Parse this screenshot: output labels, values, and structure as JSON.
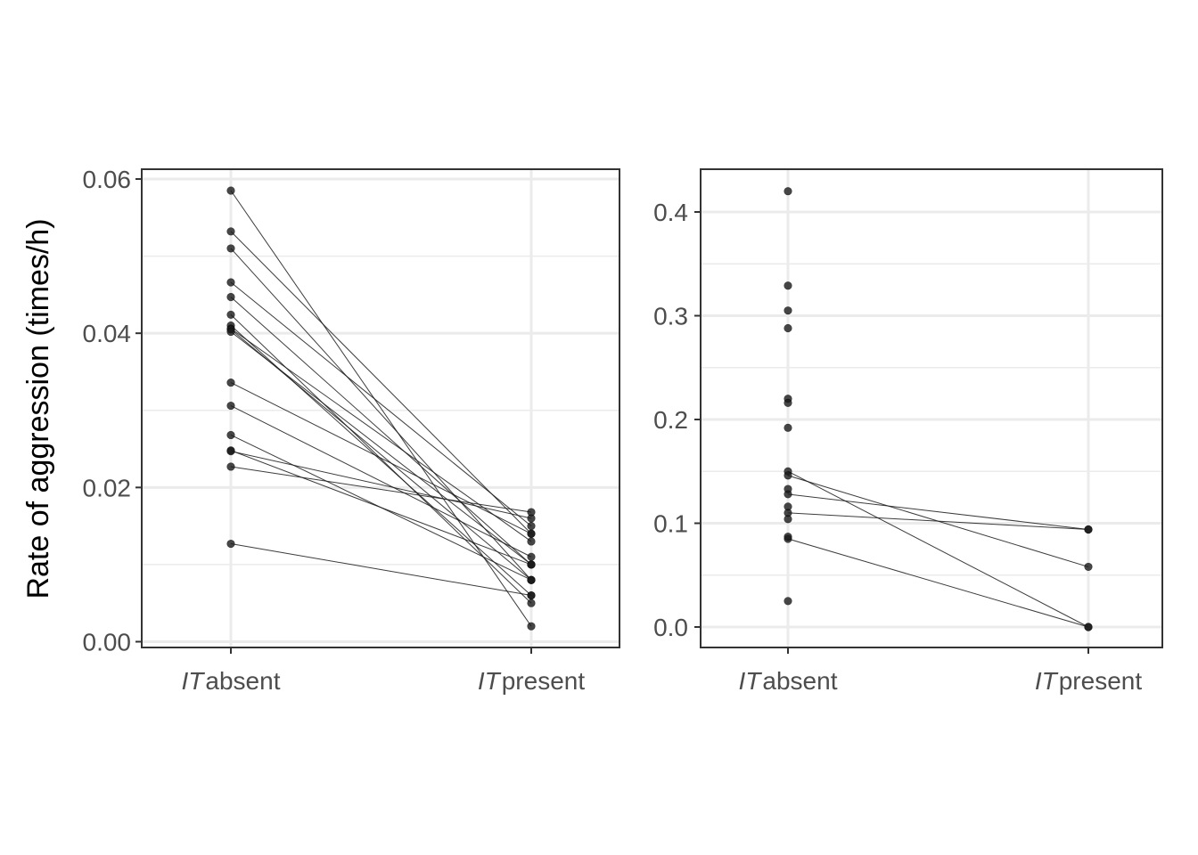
{
  "figure": {
    "ylabel": "Rate of aggression (times/h)"
  },
  "chart_data": [
    {
      "type": "line",
      "panel": "left",
      "categories": [
        {
          "italic": "IT",
          "text": "absent"
        },
        {
          "italic": "IT",
          "text": "present"
        }
      ],
      "ylim": [
        0,
        0.06
      ],
      "yticks": [
        "0.00",
        "0.02",
        "0.04",
        "0.06"
      ],
      "grid": true,
      "absent_only": [],
      "pairs": [
        [
          0.0585,
          0.002
        ],
        [
          0.0532,
          0.014
        ],
        [
          0.051,
          0.008
        ],
        [
          0.0466,
          0.015
        ],
        [
          0.0447,
          0.01
        ],
        [
          0.0424,
          0.005
        ],
        [
          0.041,
          0.006
        ],
        [
          0.0406,
          0.013
        ],
        [
          0.0405,
          0.008
        ],
        [
          0.0402,
          0.01
        ],
        [
          0.0336,
          0.014
        ],
        [
          0.0306,
          0.011
        ],
        [
          0.0268,
          0.008
        ],
        [
          0.0248,
          0.01
        ],
        [
          0.0247,
          0.016
        ],
        [
          0.0227,
          0.0168
        ],
        [
          0.0127,
          0.006
        ]
      ]
    },
    {
      "type": "line",
      "panel": "right",
      "categories": [
        {
          "italic": "IT",
          "text": "absent"
        },
        {
          "italic": "IT",
          "text": "present"
        }
      ],
      "ylim": [
        -0.02,
        0.42
      ],
      "yticks": [
        "0.0",
        "0.1",
        "0.2",
        "0.3",
        "0.4"
      ],
      "grid": true,
      "absent_only": [
        0.42,
        0.329,
        0.305,
        0.288,
        0.22,
        0.216,
        0.192,
        0.133,
        0.116,
        0.104,
        0.087,
        0.025
      ],
      "pairs": [
        [
          0.15,
          0.0
        ],
        [
          0.146,
          0.058
        ],
        [
          0.128,
          0.094
        ],
        [
          0.11,
          0.094
        ],
        [
          0.085,
          0.0
        ]
      ]
    }
  ]
}
